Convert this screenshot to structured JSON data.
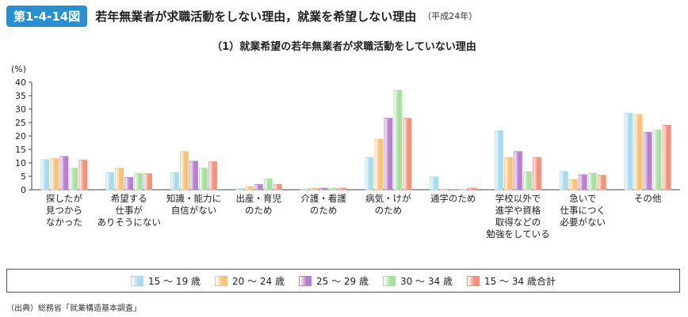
{
  "header": {
    "badge": "第1-4-14図",
    "title": "若年無業者が求職活動をしない理由，就業を希望しない理由",
    "subtitle": "（平成24年）"
  },
  "source": "（出典）総務省「就業構造基本調査」",
  "chart_data": {
    "type": "bar",
    "title": "（1）就業希望の若年無業者が求職活動をしていない理由",
    "ylabel": "(%)",
    "ylim": [
      0,
      40
    ],
    "yticks": [
      0,
      5,
      10,
      15,
      20,
      25,
      30,
      35,
      40
    ],
    "grid": false,
    "legend_position": "bottom",
    "categories": [
      [
        "探したが",
        "見つから",
        "なかった"
      ],
      [
        "希望する",
        "仕事が",
        "ありそうにない"
      ],
      [
        "知識・能力に",
        "自信がない"
      ],
      [
        "出産・育児",
        "のため"
      ],
      [
        "介護・看護",
        "のため"
      ],
      [
        "病気・けが",
        "のため"
      ],
      [
        "通学のため"
      ],
      [
        "学校以外で",
        "進学や資格",
        "取得などの",
        "勉強をしている"
      ],
      [
        "急いで",
        "仕事につく",
        "必要がない"
      ],
      [
        "その他"
      ]
    ],
    "series": [
      {
        "name": "15 ～ 19 歳",
        "color": "#a9dbef",
        "values": [
          11.2,
          6.4,
          6.4,
          0.4,
          0.2,
          12.0,
          4.8,
          22.0,
          6.8,
          28.5
        ]
      },
      {
        "name": "20 ～ 24 歳",
        "color": "#f7c27c",
        "values": [
          11.6,
          8.0,
          14.2,
          1.2,
          0.6,
          18.8,
          0.2,
          12.0,
          3.8,
          28.0
        ]
      },
      {
        "name": "25 ～ 29 歳",
        "color": "#b97fcf",
        "values": [
          12.4,
          4.6,
          10.6,
          2.0,
          0.6,
          26.6,
          0.1,
          14.2,
          5.6,
          21.4
        ]
      },
      {
        "name": "30 ～ 34 歳",
        "color": "#a9dfa4",
        "values": [
          8.0,
          6.0,
          8.0,
          4.0,
          0.6,
          37.0,
          0.1,
          6.6,
          6.2,
          22.2
        ]
      },
      {
        "name": "15 ～ 34 歳合計",
        "color": "#f2927c",
        "values": [
          11.0,
          6.0,
          10.4,
          2.0,
          0.6,
          26.6,
          0.6,
          12.0,
          5.4,
          24.0
        ]
      }
    ]
  }
}
